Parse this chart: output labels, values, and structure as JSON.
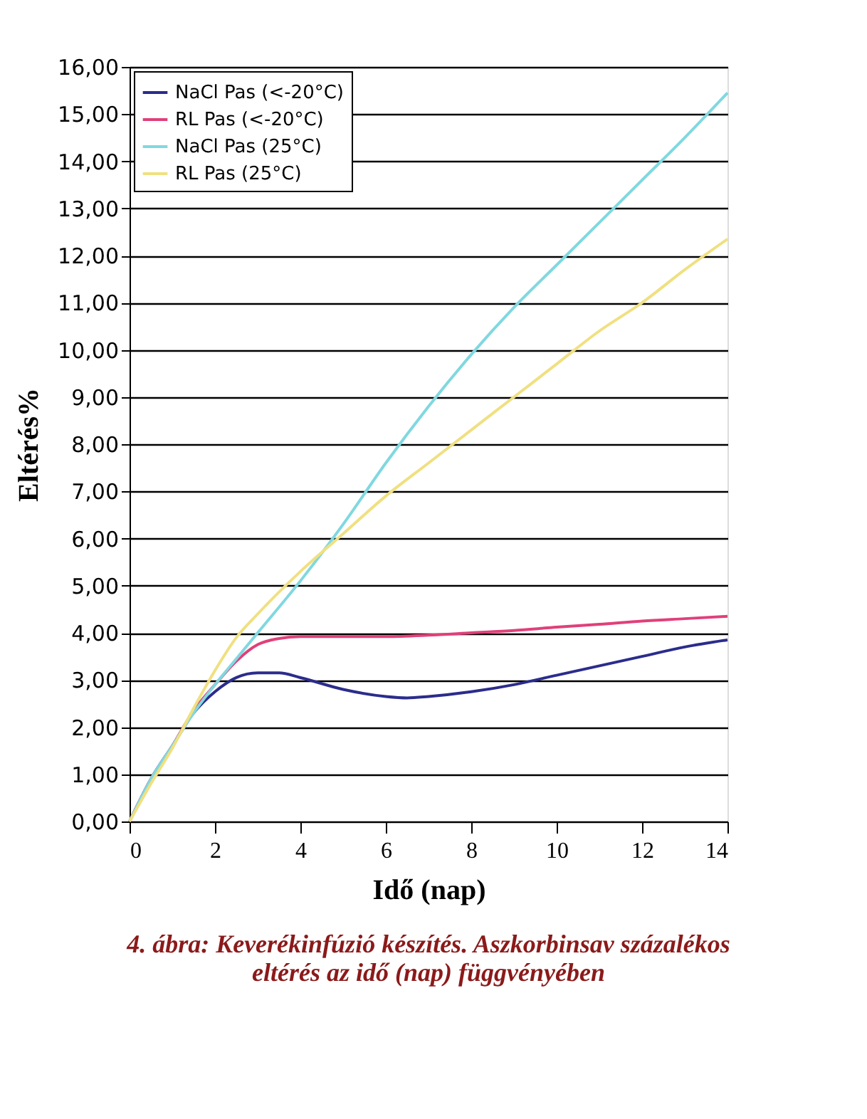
{
  "chart_data": {
    "type": "line",
    "xlabel": "Idő (nap)",
    "ylabel": "Eltérés%",
    "annotations": [
      "4. ábra: Keverékinfúzió készítés. Aszkorbinsav százalékos",
      "eltérés az idő (nap) függvényében"
    ],
    "xlim": [
      0,
      14
    ],
    "xticks": [
      0,
      2,
      4,
      6,
      8,
      10,
      12,
      14
    ],
    "ylim": [
      0,
      16
    ],
    "yticks": [
      {
        "value": 0,
        "label": "0,00"
      },
      {
        "value": 1,
        "label": "1,00"
      },
      {
        "value": 2,
        "label": "2,00"
      },
      {
        "value": 3,
        "label": "3,00"
      },
      {
        "value": 4,
        "label": "4,00"
      },
      {
        "value": 5,
        "label": "5,00"
      },
      {
        "value": 6,
        "label": "6,00"
      },
      {
        "value": 7,
        "label": "7,00"
      },
      {
        "value": 8,
        "label": "8,00"
      },
      {
        "value": 9,
        "label": "9,00"
      },
      {
        "value": 10,
        "label": "10,00"
      },
      {
        "value": 11,
        "label": "11,00"
      },
      {
        "value": 12,
        "label": "12,00"
      },
      {
        "value": 13,
        "label": "13,00"
      },
      {
        "value": 14,
        "label": "14,00"
      },
      {
        "value": 15,
        "label": "15,00"
      },
      {
        "value": 16,
        "label": "16,00"
      }
    ],
    "grid": "y",
    "legend": "top left",
    "marker": "none",
    "line_style": "solid",
    "series": [
      {
        "name": "NaCl Pas (<-20°C)",
        "color": "#2b2c8c",
        "x": [
          0,
          0.5,
          1,
          1.5,
          2,
          2.5,
          3,
          3.5,
          4,
          5,
          6,
          6.5,
          7,
          8,
          9,
          10,
          11,
          12,
          13,
          14
        ],
        "values": [
          0,
          0.9,
          1.6,
          2.3,
          2.75,
          3.05,
          3.15,
          3.15,
          3.05,
          2.8,
          2.65,
          2.62,
          2.65,
          2.75,
          2.9,
          3.1,
          3.3,
          3.5,
          3.7,
          3.85
        ]
      },
      {
        "name": "RL Pas (<-20°C)",
        "color": "#e0407a",
        "x": [
          0,
          0.5,
          1,
          1.5,
          2,
          2.5,
          3,
          3.5,
          4,
          5,
          6,
          7,
          8,
          9,
          10,
          11,
          12,
          13,
          14
        ],
        "values": [
          0,
          0.9,
          1.6,
          2.35,
          2.9,
          3.4,
          3.75,
          3.88,
          3.92,
          3.92,
          3.92,
          3.95,
          4.0,
          4.05,
          4.12,
          4.18,
          4.25,
          4.3,
          4.35
        ]
      },
      {
        "name": "NaCl Pas (25°C)",
        "color": "#80d8e0",
        "x": [
          0,
          0.5,
          1,
          1.5,
          2,
          2.5,
          3,
          4,
          5,
          6,
          7,
          8,
          9,
          10,
          11,
          12,
          13,
          14
        ],
        "values": [
          0,
          0.9,
          1.6,
          2.3,
          2.9,
          3.45,
          4.0,
          5.1,
          6.3,
          7.6,
          8.8,
          9.9,
          10.9,
          11.8,
          12.7,
          13.6,
          14.5,
          15.45
        ]
      },
      {
        "name": "RL Pas (25°C)",
        "color": "#f0e080",
        "x": [
          0,
          0.5,
          1,
          1.5,
          2,
          2.5,
          3,
          4,
          5,
          6,
          7,
          8,
          9,
          10,
          11,
          12,
          13,
          14
        ],
        "values": [
          0,
          0.8,
          1.55,
          2.4,
          3.2,
          3.9,
          4.4,
          5.3,
          6.1,
          6.9,
          7.6,
          8.3,
          9.0,
          9.7,
          10.4,
          11.0,
          11.7,
          12.35
        ]
      }
    ]
  }
}
